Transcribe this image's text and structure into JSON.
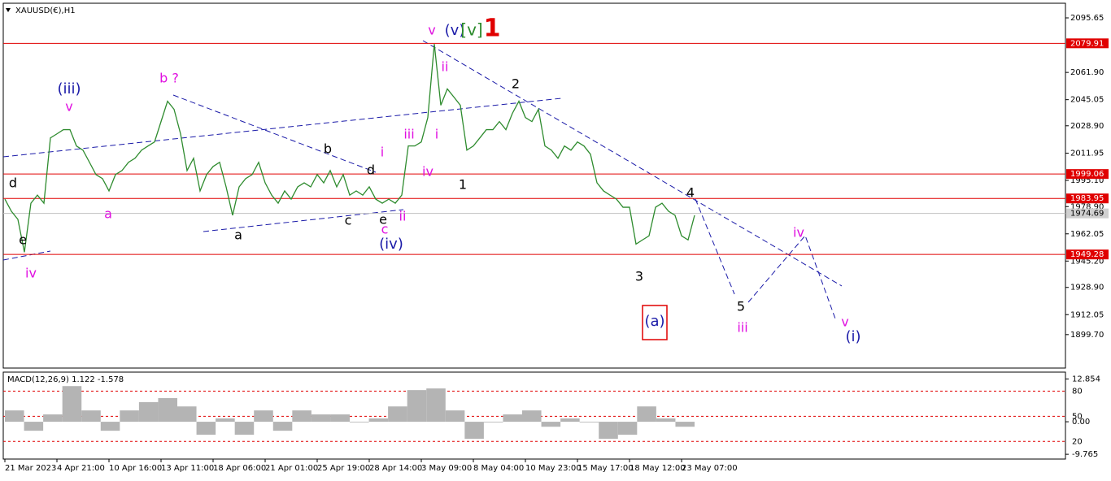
{
  "chart_data": {
    "type": "line",
    "title": "XAUUSD(€),H1",
    "categories": [
      "21 Mar 2023",
      null,
      null,
      null,
      null,
      null,
      null,
      null,
      "4 Apr 21:00",
      null,
      null,
      null,
      null,
      null,
      null,
      null,
      "10 Apr 16:00",
      null,
      null,
      null,
      null,
      null,
      null,
      null,
      "13 Apr 11:00",
      null,
      null,
      null,
      null,
      null,
      null,
      null,
      "18 Apr 06:00",
      null,
      null,
      null,
      null,
      null,
      null,
      null,
      "21 Apr 01:00",
      null,
      null,
      null,
      null,
      null,
      null,
      null,
      "25 Apr 19:00",
      null,
      null,
      null,
      null,
      null,
      null,
      null,
      "28 Apr 14:00",
      null,
      null,
      null,
      null,
      null,
      null,
      null,
      "3 May 09:00",
      null,
      null,
      null,
      null,
      null,
      null,
      null,
      "8 May 04:00",
      null,
      null,
      null,
      null,
      null,
      null,
      null,
      "10 May 23:00",
      null,
      null,
      null,
      null,
      null,
      null,
      null,
      "15 May 17:00",
      null,
      null,
      null,
      null,
      null,
      null,
      null,
      "18 May 12:00",
      null,
      null,
      null,
      null,
      null,
      null,
      null,
      "23 May 07:00",
      null,
      null
    ],
    "series": [
      {
        "color": "#2e8b2e",
        "values": [
          1983.5,
          1976.0,
          1971.0,
          1950.7,
          1981.0,
          1986.0,
          1981.0,
          2021.4,
          2023.9,
          2026.5,
          2026.5,
          2016.4,
          2013.8,
          2006.3,
          1998.7,
          1996.2,
          1988.6,
          1998.7,
          2001.2,
          2006.3,
          2008.8,
          2013.8,
          2016.4,
          2018.9,
          2031.5,
          2044.1,
          2039.1,
          2023.9,
          2001.2,
          2008.8,
          1988.6,
          1998.7,
          2003.7,
          2006.3,
          1991.1,
          1973.5,
          1991.1,
          1996.2,
          1998.7,
          2006.3,
          1993.6,
          1986.0,
          1981.0,
          1988.6,
          1983.5,
          1991.1,
          1993.6,
          1991.1,
          1998.7,
          1993.6,
          2001.2,
          1991.1,
          1998.7,
          1986.0,
          1988.6,
          1986.0,
          1991.1,
          1983.5,
          1981.0,
          1983.5,
          1981.0,
          1986.0,
          2016.4,
          2016.4,
          2018.9,
          2034.0,
          2079.5,
          2041.6,
          2051.7,
          2046.7,
          2041.6,
          2013.8,
          2016.4,
          2021.4,
          2026.5,
          2026.5,
          2031.5,
          2026.5,
          2036.6,
          2044.1,
          2034.0,
          2031.5,
          2039.1,
          2016.4,
          2013.8,
          2008.8,
          2016.4,
          2013.8,
          2018.9,
          2016.4,
          2011.3,
          1993.6,
          1988.6,
          1986.0,
          1983.5,
          1978.5,
          1978.5,
          1955.7,
          1958.3,
          1960.8,
          1978.5,
          1981.0,
          1976.0,
          1973.5,
          1960.8,
          1958.3,
          1973.5
        ]
      }
    ],
    "ylim": [
      1879,
      2104.7
    ],
    "yticks": [
      2095.65,
      {
        "value": 2061.9,
        "label": "2061.90"
      },
      2045.05,
      {
        "value": 2028.9,
        "label": "2028.90"
      },
      2011.95,
      {
        "value": 1995.1,
        "label": "1995.10"
      },
      {
        "value": 1978.9,
        "label": "1978.90"
      },
      1962.05,
      {
        "value": 1945.2,
        "label": "1945.20"
      },
      {
        "value": 1928.9,
        "label": "1928.90"
      },
      1912.05,
      {
        "value": 1899.7,
        "label": "1899.70"
      }
    ],
    "hlines": [
      2079.91,
      1999.06,
      1983.95,
      1949.28
    ],
    "hline_color": "#e00000",
    "current_price": 1974.69,
    "annotations": [
      {
        "text": "d",
        "color": "#000000"
      },
      {
        "text": "e",
        "color": "#000000"
      },
      {
        "text": "iv",
        "color": "#e010e0"
      },
      {
        "text": "(iii)",
        "color": "#1a1aa8"
      },
      {
        "text": "v",
        "color": "#e010e0"
      },
      {
        "text": "a",
        "color": "#e010e0"
      },
      {
        "text": "b ?",
        "color": "#e010e0"
      },
      {
        "text": "a",
        "color": "#000000"
      },
      {
        "text": "b",
        "color": "#000000"
      },
      {
        "text": "c",
        "color": "#000000"
      },
      {
        "text": "d",
        "color": "#000000"
      },
      {
        "text": "e",
        "color": "#000000"
      },
      {
        "text": "i",
        "color": "#e010e0"
      },
      {
        "text": "ii",
        "color": "#e010e0"
      },
      {
        "text": "c",
        "color": "#e010e0"
      },
      {
        "text": "(iv)",
        "color": "#1a1aa8"
      },
      {
        "text": "iii",
        "color": "#e010e0"
      },
      {
        "text": "iv",
        "color": "#e010e0"
      },
      {
        "text": "i",
        "color": "#e010e0"
      },
      {
        "text": "ii",
        "color": "#e010e0"
      },
      {
        "text": "v",
        "color": "#e010e0"
      },
      {
        "text": "(v)",
        "color": "#1a1aa8"
      },
      {
        "text": "[v]",
        "color": "#2a8a2a"
      },
      {
        "text": "1",
        "color": "#e00000"
      },
      {
        "text": "1",
        "color": "#000000"
      },
      {
        "text": "2",
        "color": "#000000"
      },
      {
        "text": "3",
        "color": "#000000"
      },
      {
        "text": "4",
        "color": "#000000"
      },
      {
        "text": "5",
        "color": "#000000"
      },
      {
        "text": "iii",
        "color": "#e010e0"
      },
      {
        "text": "iv",
        "color": "#e010e0"
      },
      {
        "text": "v",
        "color": "#e010e0"
      },
      {
        "text": "(i)",
        "color": "#1a1aa8"
      },
      {
        "text": "(a)",
        "color": "#1a1aa8",
        "box_color": "#e00000"
      }
    ],
    "subchart": {
      "type": "bar",
      "title": "MACD(12,26,9) 1.122 -1.578",
      "color": "#b4b4b4",
      "values": [
        3.4,
        -2.7,
        2.2,
        10.7,
        3.4,
        -2.7,
        3.4,
        5.9,
        7.1,
        4.6,
        -3.9,
        1.0,
        -3.9,
        3.4,
        -2.7,
        3.4,
        2.2,
        2.2,
        -0.2,
        1.0,
        4.6,
        9.5,
        10.0,
        3.4,
        -5.1,
        -0.2,
        2.2,
        3.4,
        -1.5,
        1.0,
        -0.2,
        -5.1,
        -3.9,
        4.6,
        1.0,
        -1.5
      ],
      "ylim": [
        -11.2,
        14.9
      ],
      "yticks": [
        12.854,
        {
          "value": 0,
          "label": "0.00"
        },
        -9.765
      ],
      "y2lim": [
        -1,
        102.6
      ],
      "y2ticks": [
        80,
        50,
        20
      ],
      "y2_color": "#e00000"
    }
  }
}
